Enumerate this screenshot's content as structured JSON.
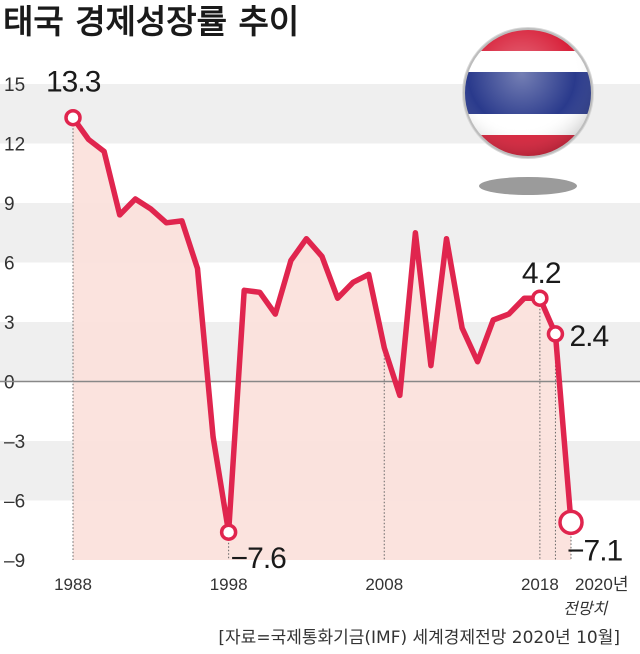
{
  "chart_data": {
    "type": "line",
    "title": "태국 경제성장률 추이",
    "x": [
      1988,
      1989,
      1990,
      1991,
      1992,
      1993,
      1994,
      1995,
      1996,
      1997,
      1998,
      1999,
      2000,
      2001,
      2002,
      2003,
      2004,
      2005,
      2006,
      2007,
      2008,
      2009,
      2010,
      2011,
      2012,
      2013,
      2014,
      2015,
      2016,
      2017,
      2018,
      2019,
      2020
    ],
    "series": [
      {
        "values": [
          13.3,
          12.2,
          11.6,
          8.4,
          9.2,
          8.7,
          8.0,
          8.1,
          5.7,
          -2.8,
          -7.6,
          4.6,
          4.5,
          3.4,
          6.1,
          7.2,
          6.3,
          4.2,
          5.0,
          5.4,
          1.7,
          -0.7,
          7.5,
          0.8,
          7.2,
          2.7,
          1.0,
          3.1,
          3.4,
          4.2,
          4.2,
          2.4,
          -7.1
        ]
      }
    ],
    "ylim": [
      -9,
      15
    ],
    "yticks": [
      15,
      12,
      9,
      6,
      3,
      0,
      -3,
      -6,
      -9
    ],
    "ytick_labels": [
      "15",
      "12",
      "9",
      "6",
      "3",
      "0",
      "–3",
      "–6",
      "–9"
    ],
    "xticks": [
      1988,
      1998,
      2008,
      2018,
      2020
    ],
    "xtick_labels": [
      "1988",
      "1998",
      "2008",
      "2018",
      "2020년"
    ],
    "xtick_sublabel": "전망치",
    "annotations": [
      {
        "x": 1988,
        "y": 13.3,
        "text": "13.3"
      },
      {
        "x": 1998,
        "y": -7.6,
        "text": "−7.6"
      },
      {
        "x": 2018,
        "y": 4.2,
        "text": "4.2"
      },
      {
        "x": 2019,
        "y": 2.4,
        "text": "2.4"
      },
      {
        "x": 2020,
        "y": -7.1,
        "text": "−7.1"
      }
    ],
    "grid": "alternating horizontal bands",
    "colors": {
      "line": "#e0254e",
      "fill": "#fbe0da",
      "band": "#efefef",
      "zero_line": "#888888"
    }
  },
  "source": "[자료=국제통화기금(IMF) 세계경제전망 2020년 10월]"
}
